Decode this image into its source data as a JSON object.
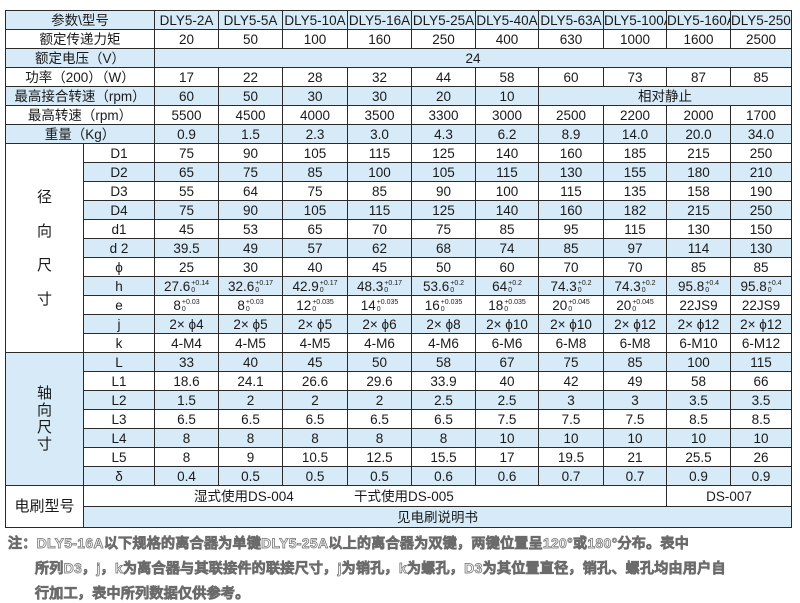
{
  "header": {
    "label": "参数\\型号",
    "models": [
      "DLY5-2A",
      "DLY5-5A",
      "DLY5-10A",
      "DLY5-16A",
      "DLY5-25A",
      "DLY5-40A",
      "DLY5-63A",
      "DLY5-100A",
      "DLY5-160A",
      "DLY5-250A"
    ]
  },
  "general_rows": [
    {
      "label": "额定传递力矩",
      "values": [
        {
          "text": "20"
        },
        {
          "text": "50"
        },
        {
          "text": "100"
        },
        {
          "text": "160"
        },
        {
          "text": "250"
        },
        {
          "text": "400"
        },
        {
          "text": "630"
        },
        {
          "text": "1000"
        },
        {
          "text": "1600"
        },
        {
          "text": "2500"
        }
      ]
    },
    {
      "label": "额定电压（V）",
      "values": [
        {
          "text": "24",
          "colspan": 10
        }
      ]
    },
    {
      "label": "功率（200）（W）",
      "values": [
        {
          "text": "17"
        },
        {
          "text": "22"
        },
        {
          "text": "28"
        },
        {
          "text": "32"
        },
        {
          "text": "44"
        },
        {
          "text": "58"
        },
        {
          "text": "60"
        },
        {
          "text": "73"
        },
        {
          "text": "87"
        },
        {
          "text": "85"
        }
      ]
    },
    {
      "label": "最高接合转速（rpm）",
      "values": [
        {
          "text": "60"
        },
        {
          "text": "50"
        },
        {
          "text": "30"
        },
        {
          "text": "30"
        },
        {
          "text": "20"
        },
        {
          "text": "10"
        },
        {
          "text": "相对静止",
          "colspan": 4
        }
      ]
    },
    {
      "label": "最高转速（rpm）",
      "values": [
        {
          "text": "5500"
        },
        {
          "text": "4500"
        },
        {
          "text": "4000"
        },
        {
          "text": "3500"
        },
        {
          "text": "3300"
        },
        {
          "text": "3000"
        },
        {
          "text": "2500"
        },
        {
          "text": "2200"
        },
        {
          "text": "2000"
        },
        {
          "text": "1700"
        }
      ]
    },
    {
      "label": "重量（Kg）",
      "values": [
        {
          "text": "0.9"
        },
        {
          "text": "1.5"
        },
        {
          "text": "2.3"
        },
        {
          "text": "3.0"
        },
        {
          "text": "4.3"
        },
        {
          "text": "6.2"
        },
        {
          "text": "8.9"
        },
        {
          "text": "14.0"
        },
        {
          "text": "20.0"
        },
        {
          "text": "34.0"
        }
      ]
    }
  ],
  "radial": {
    "group_label": [
      "径",
      "向",
      "尺",
      "寸"
    ],
    "rows": [
      {
        "param": "D1",
        "values": [
          {
            "text": "75"
          },
          {
            "text": "90"
          },
          {
            "text": "105"
          },
          {
            "text": "115"
          },
          {
            "text": "125"
          },
          {
            "text": "140"
          },
          {
            "text": "160"
          },
          {
            "text": "185"
          },
          {
            "text": "215"
          },
          {
            "text": "250"
          }
        ]
      },
      {
        "param": "D2",
        "values": [
          {
            "text": "65"
          },
          {
            "text": "75"
          },
          {
            "text": "85"
          },
          {
            "text": "100"
          },
          {
            "text": "105"
          },
          {
            "text": "115"
          },
          {
            "text": "130"
          },
          {
            "text": "155"
          },
          {
            "text": "180"
          },
          {
            "text": "210"
          }
        ]
      },
      {
        "param": "D3",
        "values": [
          {
            "text": "55"
          },
          {
            "text": "64"
          },
          {
            "text": "75"
          },
          {
            "text": "85"
          },
          {
            "text": "90"
          },
          {
            "text": "100"
          },
          {
            "text": "115"
          },
          {
            "text": "135"
          },
          {
            "text": "158"
          },
          {
            "text": "190"
          }
        ]
      },
      {
        "param": "D4",
        "values": [
          {
            "text": "75"
          },
          {
            "text": "90"
          },
          {
            "text": "105"
          },
          {
            "text": "115"
          },
          {
            "text": "125"
          },
          {
            "text": "140"
          },
          {
            "text": "160"
          },
          {
            "text": "182"
          },
          {
            "text": "215"
          },
          {
            "text": "250"
          }
        ]
      },
      {
        "param": "d1",
        "values": [
          {
            "text": "45"
          },
          {
            "text": "53"
          },
          {
            "text": "65"
          },
          {
            "text": "70"
          },
          {
            "text": "75"
          },
          {
            "text": "85"
          },
          {
            "text": "95"
          },
          {
            "text": "115"
          },
          {
            "text": "130"
          },
          {
            "text": "150"
          }
        ]
      },
      {
        "param": "d 2",
        "values": [
          {
            "text": "39.5"
          },
          {
            "text": "49"
          },
          {
            "text": "57"
          },
          {
            "text": "62"
          },
          {
            "text": "68"
          },
          {
            "text": "74"
          },
          {
            "text": "85"
          },
          {
            "text": "97"
          },
          {
            "text": "114"
          },
          {
            "text": "130"
          }
        ]
      },
      {
        "param": "ϕ",
        "values": [
          {
            "text": "25"
          },
          {
            "text": "30"
          },
          {
            "text": "40"
          },
          {
            "text": "45"
          },
          {
            "text": "50"
          },
          {
            "text": "60"
          },
          {
            "text": "70"
          },
          {
            "text": "70"
          },
          {
            "text": "85"
          },
          {
            "text": "85"
          }
        ]
      },
      {
        "param": "h",
        "values": [
          {
            "text": "27.6",
            "upper": "+0.14",
            "lower": "0"
          },
          {
            "text": "32.6",
            "upper": "+0.17",
            "lower": "0"
          },
          {
            "text": "42.9",
            "upper": "+0.17",
            "lower": "0"
          },
          {
            "text": "48.3",
            "upper": "+0.17",
            "lower": "0"
          },
          {
            "text": "53.6",
            "upper": "+0.2",
            "lower": "0"
          },
          {
            "text": "64",
            "upper": "+0.2",
            "lower": "0"
          },
          {
            "text": "74.3",
            "upper": "+0.2",
            "lower": "0"
          },
          {
            "text": "74.3",
            "upper": "+0.2",
            "lower": "0"
          },
          {
            "text": "95.8",
            "upper": "+0.4",
            "lower": "0"
          },
          {
            "text": "95.8",
            "upper": "+0.4",
            "lower": "0"
          }
        ]
      },
      {
        "param": "e",
        "values": [
          {
            "text": "8",
            "upper": "+0.03",
            "lower": "0"
          },
          {
            "text": "8",
            "upper": "+0.03",
            "lower": "0"
          },
          {
            "text": "12",
            "upper": "+0.035",
            "lower": "0"
          },
          {
            "text": "14",
            "upper": "+0.035",
            "lower": "0"
          },
          {
            "text": "16",
            "upper": "+0.035",
            "lower": "0"
          },
          {
            "text": "18",
            "upper": "+0.035",
            "lower": "0"
          },
          {
            "text": "20",
            "upper": "+0.045",
            "lower": "0"
          },
          {
            "text": "20",
            "upper": "+0.045",
            "lower": "0"
          },
          {
            "text": "22JS9"
          },
          {
            "text": "22JS9"
          }
        ]
      },
      {
        "param": "j",
        "values": [
          {
            "text": "2× ϕ4"
          },
          {
            "text": "2× ϕ5"
          },
          {
            "text": "2× ϕ5"
          },
          {
            "text": "2× ϕ6"
          },
          {
            "text": "2× ϕ8"
          },
          {
            "text": "2× ϕ10"
          },
          {
            "text": "2× ϕ10"
          },
          {
            "text": "2× ϕ12"
          },
          {
            "text": "2× ϕ12"
          },
          {
            "text": "2× ϕ12"
          }
        ]
      },
      {
        "param": "k",
        "values": [
          {
            "text": "4-M4"
          },
          {
            "text": "4-M5"
          },
          {
            "text": "4-M5"
          },
          {
            "text": "4-M6"
          },
          {
            "text": "4-M6"
          },
          {
            "text": "6-M6"
          },
          {
            "text": "6-M8"
          },
          {
            "text": "6-M8"
          },
          {
            "text": "6-M10"
          },
          {
            "text": "6-M12"
          }
        ]
      }
    ]
  },
  "axial": {
    "group_label": [
      "轴",
      "向",
      "尺",
      "寸"
    ],
    "rows": [
      {
        "param": "L",
        "values": [
          {
            "text": "33"
          },
          {
            "text": "40"
          },
          {
            "text": "45"
          },
          {
            "text": "50"
          },
          {
            "text": "58"
          },
          {
            "text": "67"
          },
          {
            "text": "75"
          },
          {
            "text": "85"
          },
          {
            "text": "100"
          },
          {
            "text": "115"
          }
        ]
      },
      {
        "param": "L1",
        "values": [
          {
            "text": "18.6"
          },
          {
            "text": "24.1"
          },
          {
            "text": "26.6"
          },
          {
            "text": "29.6"
          },
          {
            "text": "33.9"
          },
          {
            "text": "40"
          },
          {
            "text": "42"
          },
          {
            "text": "49"
          },
          {
            "text": "58"
          },
          {
            "text": "66"
          }
        ]
      },
      {
        "param": "L2",
        "values": [
          {
            "text": "1.5"
          },
          {
            "text": "2"
          },
          {
            "text": "2"
          },
          {
            "text": "2"
          },
          {
            "text": "2.5"
          },
          {
            "text": "2.5"
          },
          {
            "text": "3"
          },
          {
            "text": "3"
          },
          {
            "text": "3.5"
          },
          {
            "text": "3.5"
          }
        ]
      },
      {
        "param": "L3",
        "values": [
          {
            "text": "6.5"
          },
          {
            "text": "6.5"
          },
          {
            "text": "6.5"
          },
          {
            "text": "6.5"
          },
          {
            "text": "6.5"
          },
          {
            "text": "7.5"
          },
          {
            "text": "7.5"
          },
          {
            "text": "7.5"
          },
          {
            "text": "8.5"
          },
          {
            "text": "8.5"
          }
        ]
      },
      {
        "param": "L4",
        "values": [
          {
            "text": "8"
          },
          {
            "text": "8"
          },
          {
            "text": "8"
          },
          {
            "text": "8"
          },
          {
            "text": "8"
          },
          {
            "text": "10"
          },
          {
            "text": "10"
          },
          {
            "text": "10"
          },
          {
            "text": "10"
          },
          {
            "text": "10"
          }
        ]
      },
      {
        "param": "L5",
        "values": [
          {
            "text": "8"
          },
          {
            "text": "9"
          },
          {
            "text": "10.5"
          },
          {
            "text": "12.5"
          },
          {
            "text": "15.5"
          },
          {
            "text": "17"
          },
          {
            "text": "19.5"
          },
          {
            "text": "21"
          },
          {
            "text": "25.5"
          },
          {
            "text": "26"
          }
        ]
      },
      {
        "param": "δ",
        "values": [
          {
            "text": "0.4"
          },
          {
            "text": "0.5"
          },
          {
            "text": "0.5"
          },
          {
            "text": "0.5"
          },
          {
            "text": "0.6"
          },
          {
            "text": "0.6"
          },
          {
            "text": "0.7"
          },
          {
            "text": "0.7"
          },
          {
            "text": "0.9"
          },
          {
            "text": "0.9"
          }
        ]
      }
    ]
  },
  "brush": {
    "label": "电刷型号",
    "wet": "湿式使用DS-004",
    "dry": "干式使用DS-005",
    "large": "DS-007",
    "note": "见电刷说明书"
  },
  "footnote": [
    "注：DLY5-16A以下规格的离合器为单键DLY5-25A以上的离合器为双键，两键位置呈120°或180°分布。表中",
    "所列D3，j，k为离合器与其联接件的联接尺寸，j为销孔，k为螺孔，D3为其位置直径，销孔、螺孔均由用户自",
    "行加工，表中所列数据仅供参考。"
  ],
  "colors": {
    "row_blue": "#d6eaf8",
    "row_white": "#ffffff",
    "border": "#2a2a2a",
    "footnote": "#6b6b6b"
  }
}
